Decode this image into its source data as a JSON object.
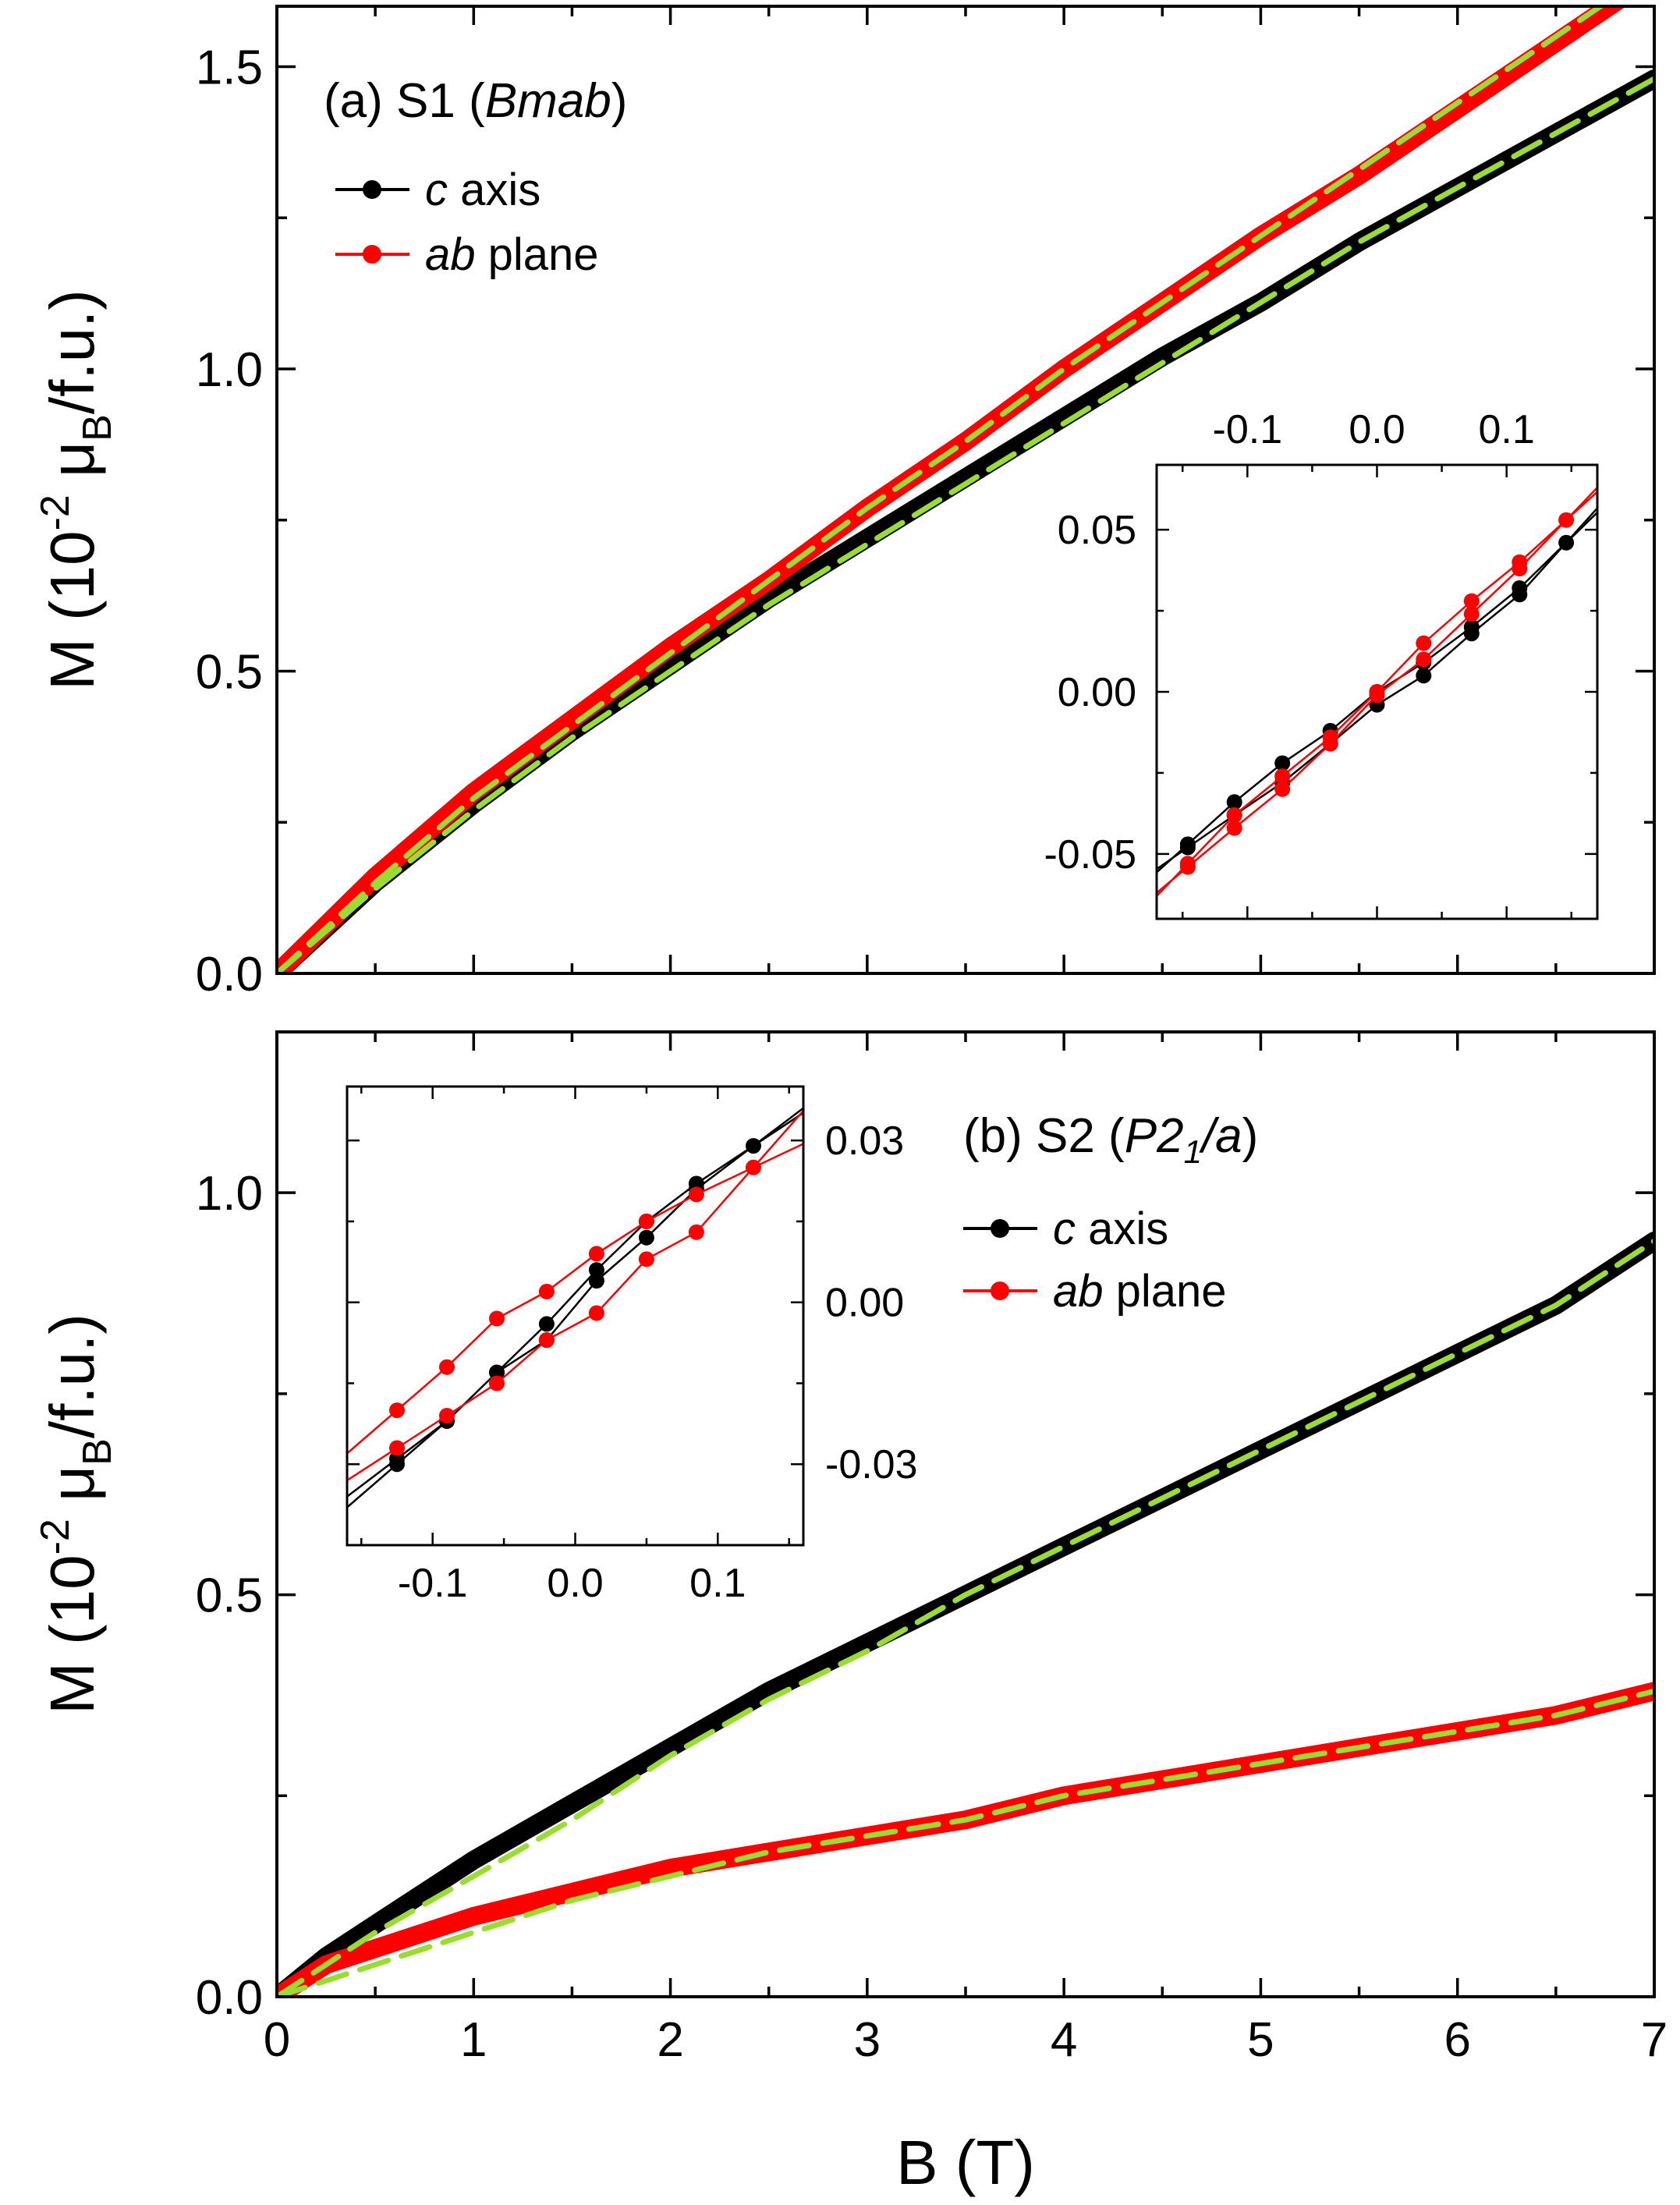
{
  "chart_data": [
    {
      "panel": "a",
      "type": "line",
      "label": "(a) S1 (Bmab)",
      "label_parts": {
        "prefix": "(a) S1 (",
        "italic": "Bmab",
        "suffix": ")"
      },
      "xlabel": "",
      "ylabel": "M (10^-2 μB/f.u.)",
      "ylabel_parts": {
        "m": "M (10",
        "exp": "-2",
        "mu": " μ",
        "sub": "B",
        "rest": "/f.u.)"
      },
      "xlim": [
        0,
        7
      ],
      "ylim": [
        0,
        1.6
      ],
      "yticks": [
        "0.0",
        "0.5",
        "1.0",
        "1.5"
      ],
      "legend": {
        "placement": "top-left",
        "entries": [
          {
            "italic": "c",
            "text": " axis",
            "color": "#000000"
          },
          {
            "italic": "ab",
            "text": " plane",
            "color": "#ff0000"
          }
        ]
      },
      "series": [
        {
          "name": "c axis",
          "color": "#000000",
          "x": [
            0,
            0.5,
            1,
            1.5,
            2,
            2.5,
            3,
            3.5,
            4,
            4.5,
            5,
            5.5,
            6,
            6.5,
            7
          ],
          "y": [
            0,
            0.15,
            0.28,
            0.4,
            0.51,
            0.62,
            0.72,
            0.82,
            0.92,
            1.02,
            1.11,
            1.21,
            1.3,
            1.39,
            1.48
          ]
        },
        {
          "name": "ab plane",
          "color": "#ff0000",
          "x": [
            0,
            0.5,
            1,
            1.5,
            2,
            2.5,
            3,
            3.5,
            4,
            4.5,
            5,
            5.5,
            6,
            6.5,
            7
          ],
          "y": [
            0,
            0.16,
            0.3,
            0.42,
            0.54,
            0.65,
            0.77,
            0.88,
            1.0,
            1.11,
            1.22,
            1.32,
            1.43,
            1.54,
            1.65
          ]
        },
        {
          "name": "",
          "color": "#99dd33",
          "dashed": true,
          "x": [
            0,
            0.5,
            1,
            1.5,
            2,
            2.5,
            3,
            3.5,
            4,
            4.5,
            5,
            5.5,
            6,
            6.5,
            7
          ],
          "y": [
            0,
            0.14,
            0.27,
            0.39,
            0.5,
            0.61,
            0.71,
            0.81,
            0.91,
            1.01,
            1.11,
            1.21,
            1.3,
            1.39,
            1.48
          ]
        },
        {
          "name": "",
          "color": "#99dd33",
          "dashed": true,
          "x": [
            0,
            0.5,
            1,
            1.5,
            2,
            2.5,
            3,
            3.5,
            4,
            4.5,
            5,
            5.5,
            6,
            6.5,
            7
          ],
          "y": [
            0,
            0.15,
            0.29,
            0.41,
            0.53,
            0.65,
            0.77,
            0.88,
            1.0,
            1.11,
            1.22,
            1.33,
            1.44,
            1.55,
            1.66
          ]
        }
      ],
      "inset": {
        "xlim": [
          -0.17,
          0.17
        ],
        "ylim": [
          -0.07,
          0.07
        ],
        "xticks": [
          "-0.1",
          "0.0",
          "0.1"
        ],
        "yticks": [
          "-0.05",
          "0.00",
          "0.05"
        ],
        "xtick_values": [
          -0.1,
          0.0,
          0.1
        ],
        "ytick_values": [
          -0.05,
          0.0,
          0.05
        ],
        "loops": [
          {
            "name": "c axis",
            "color": "#000000",
            "x": [
              -0.146,
              -0.11,
              -0.073,
              -0.036,
              0,
              0.036,
              0.073,
              0.11,
              0.146,
              0.11,
              0.073,
              0.036,
              0,
              -0.036,
              -0.073,
              -0.11,
              -0.146
            ],
            "y": [
              -0.047,
              -0.034,
              -0.022,
              -0.012,
              0.0,
              0.009,
              0.02,
              0.032,
              0.046,
              0.03,
              0.018,
              0.005,
              -0.004,
              -0.016,
              -0.028,
              -0.038,
              -0.048
            ]
          },
          {
            "name": "ab plane",
            "color": "#ff0000",
            "x": [
              -0.146,
              -0.11,
              -0.073,
              -0.036,
              0,
              0.036,
              0.073,
              0.11,
              0.146,
              0.11,
              0.073,
              0.036,
              0,
              -0.036,
              -0.073,
              -0.11,
              -0.146
            ],
            "y": [
              -0.053,
              -0.038,
              -0.026,
              -0.014,
              0.0,
              0.015,
              0.028,
              0.04,
              0.053,
              0.038,
              0.024,
              0.01,
              -0.001,
              -0.016,
              -0.03,
              -0.042,
              -0.054
            ]
          }
        ]
      }
    },
    {
      "panel": "b",
      "type": "line",
      "label": "(b) S2 (P21/a)",
      "label_parts": {
        "prefix": "(b) S2 (",
        "italic": "P2",
        "sub": "1",
        "italic2": "/a",
        "suffix": ")"
      },
      "xlabel": "B (T)",
      "ylabel": "M (10^-2 μB/f.u.)",
      "ylabel_parts": {
        "m": "M (10",
        "exp": "-2",
        "mu": " μ",
        "sub": "B",
        "rest": "/f.u.)"
      },
      "xlim": [
        0,
        7
      ],
      "ylim": [
        0,
        1.2
      ],
      "xticks": [
        "0",
        "1",
        "2",
        "3",
        "4",
        "5",
        "6",
        "7"
      ],
      "yticks": [
        "0.0",
        "0.5",
        "1.0"
      ],
      "legend": {
        "placement": "top-right",
        "entries": [
          {
            "italic": "c",
            "text": " axis",
            "color": "#000000"
          },
          {
            "italic": "ab",
            "text": " plane",
            "color": "#ff0000"
          }
        ]
      },
      "series": [
        {
          "name": "c axis",
          "color": "#000000",
          "x": [
            0,
            0.25,
            0.5,
            1,
            1.5,
            2,
            2.5,
            3,
            3.5,
            4,
            4.5,
            5,
            5.5,
            6,
            6.5,
            7
          ],
          "y": [
            0,
            0.05,
            0.09,
            0.17,
            0.24,
            0.31,
            0.38,
            0.44,
            0.5,
            0.56,
            0.62,
            0.68,
            0.74,
            0.8,
            0.86,
            0.94
          ]
        },
        {
          "name": "ab plane",
          "color": "#ff0000",
          "x": [
            0,
            0.25,
            0.5,
            1,
            1.5,
            2,
            2.5,
            3,
            3.5,
            4,
            4.5,
            5,
            5.5,
            6,
            6.5,
            7
          ],
          "y": [
            0,
            0.04,
            0.06,
            0.1,
            0.13,
            0.16,
            0.18,
            0.2,
            0.22,
            0.25,
            0.27,
            0.29,
            0.31,
            0.33,
            0.35,
            0.38
          ]
        },
        {
          "name": "",
          "color": "#99dd33",
          "dashed": true,
          "x": [
            0,
            0.25,
            0.5,
            1,
            1.5,
            2,
            2.5,
            3,
            3.5,
            4,
            4.5,
            5,
            5.5,
            6,
            6.5,
            7
          ],
          "y": [
            0,
            0.04,
            0.08,
            0.15,
            0.22,
            0.3,
            0.37,
            0.43,
            0.5,
            0.56,
            0.62,
            0.68,
            0.74,
            0.8,
            0.86,
            0.94
          ]
        },
        {
          "name": "",
          "color": "#99dd33",
          "dashed": true,
          "x": [
            0,
            0.25,
            0.5,
            1,
            1.5,
            2,
            2.5,
            3,
            3.5,
            4,
            4.5,
            5,
            5.5,
            6,
            6.5,
            7
          ],
          "y": [
            0,
            0.02,
            0.04,
            0.08,
            0.12,
            0.15,
            0.18,
            0.2,
            0.22,
            0.25,
            0.27,
            0.29,
            0.31,
            0.33,
            0.35,
            0.38
          ]
        }
      ],
      "inset": {
        "xlim": [
          -0.16,
          0.16
        ],
        "ylim": [
          -0.045,
          0.04
        ],
        "xticks": [
          "-0.1",
          "0.0",
          "0.1"
        ],
        "yticks": [
          "-0.03",
          "0.00",
          "0.03"
        ],
        "xtick_values": [
          -0.1,
          0.0,
          0.1
        ],
        "ytick_values": [
          -0.03,
          0.0,
          0.03
        ],
        "loops": [
          {
            "name": "c axis",
            "color": "#000000",
            "x": [
              -0.125,
              -0.09,
              -0.055,
              -0.02,
              0.015,
              0.05,
              0.085,
              0.125,
              0.085,
              0.05,
              0.015,
              -0.02,
              -0.055,
              -0.09,
              -0.125
            ],
            "y": [
              -0.03,
              -0.022,
              -0.013,
              -0.004,
              0.006,
              0.015,
              0.022,
              0.029,
              0.021,
              0.012,
              0.004,
              -0.007,
              -0.013,
              -0.022,
              -0.029
            ]
          },
          {
            "name": "ab plane",
            "color": "#ff0000",
            "x": [
              -0.125,
              -0.09,
              -0.055,
              -0.02,
              0.015,
              0.05,
              0.085,
              0.125,
              0.085,
              0.05,
              0.015,
              -0.02,
              -0.055,
              -0.09,
              -0.125
            ],
            "y": [
              -0.02,
              -0.012,
              -0.003,
              0.002,
              0.009,
              0.015,
              0.02,
              0.025,
              0.013,
              0.008,
              -0.002,
              -0.007,
              -0.015,
              -0.021,
              -0.027
            ]
          }
        ]
      }
    }
  ]
}
